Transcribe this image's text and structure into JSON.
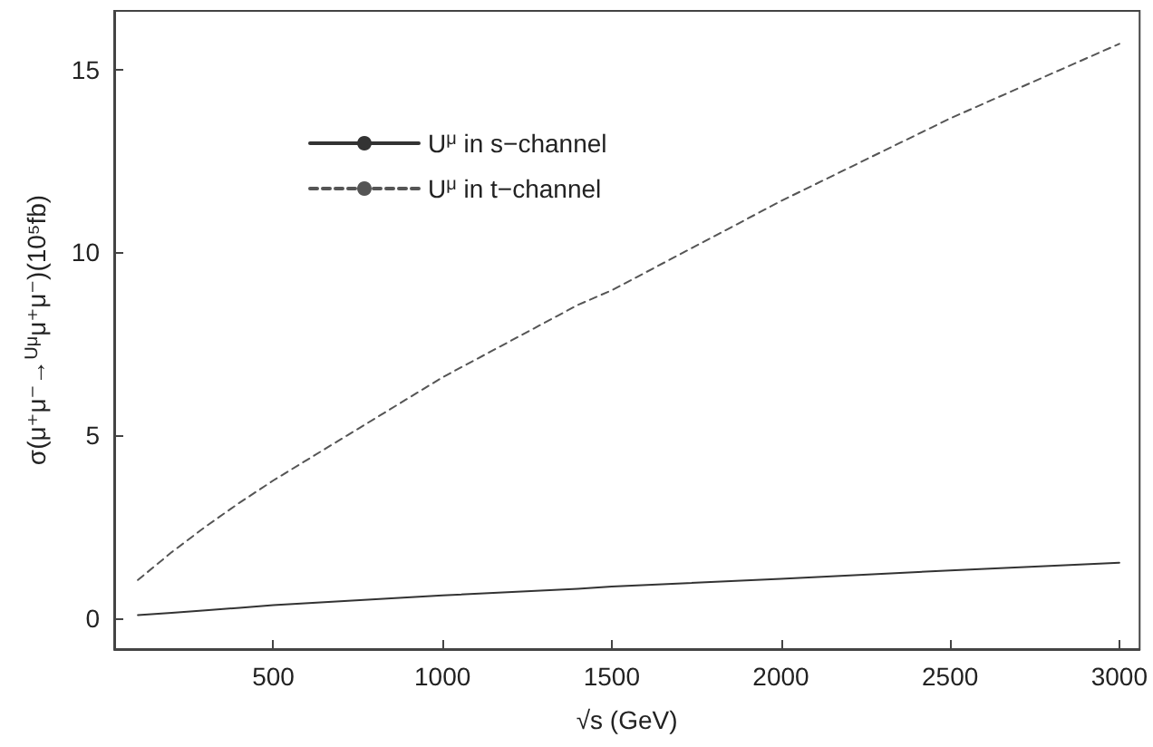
{
  "chart_data": {
    "type": "line",
    "xlabel": "√s (GeV)",
    "ylabel": "σ(μ⁺μ⁻→$^{Uμ}$μ⁺μ⁻)(10⁵fb)",
    "x": [
      100,
      200,
      300,
      400,
      500,
      1000,
      1400,
      1500,
      2000,
      2500,
      3000
    ],
    "series": [
      {
        "name": "U$^{μ}$ in s−channel",
        "color": "#333333",
        "line_style": "solid",
        "values": [
          0.08,
          0.14,
          0.21,
          0.28,
          0.35,
          0.62,
          0.8,
          0.86,
          1.07,
          1.3,
          1.51
        ]
      },
      {
        "name": "U$^{μ}$ in t−channel",
        "color": "#555555",
        "line_style": "dashed",
        "values": [
          1.04,
          1.8,
          2.5,
          3.15,
          3.76,
          6.58,
          8.56,
          8.96,
          11.4,
          13.66,
          15.7
        ]
      }
    ],
    "xlim": [
      30,
      3060
    ],
    "ylim": [
      -0.85,
      16.6
    ],
    "xticks": [
      500,
      1000,
      1500,
      2000,
      2500,
      3000
    ],
    "yticks": [
      0,
      5,
      10,
      15
    ],
    "grid": false,
    "legend": "top left",
    "marker": "none"
  }
}
